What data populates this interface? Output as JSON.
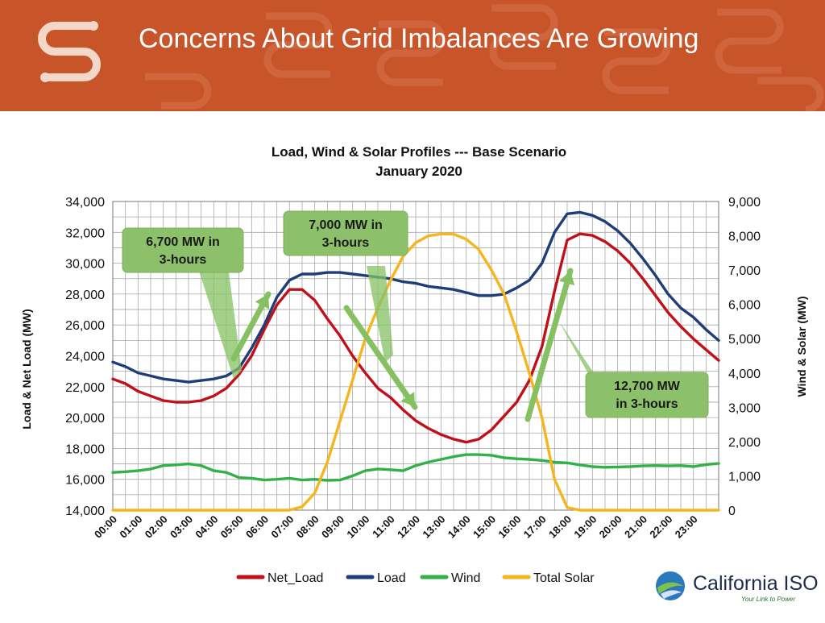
{
  "slide": {
    "title": "Concerns About Grid Imbalances Are Growing"
  },
  "brand": {
    "name": "California ISO",
    "tagline": "Your Link to Power",
    "logo_icon": "california-iso-logo-icon",
    "header_icon": "caiso-s-logo-icon"
  },
  "colors": {
    "header_bg": "#c8542a",
    "net_load": "#c0101a",
    "load": "#1f3e78",
    "wind": "#32b149",
    "solar": "#f5b51c",
    "annotation_bg": "#8dc06a",
    "arrow": "#86c161"
  },
  "chart_data": {
    "type": "line",
    "title": "Load, Wind & Solar Profiles --- Base Scenario",
    "subtitle": "January 2020",
    "ylabel": "Load & Net Load (MW)",
    "y2label": "Wind & Solar (MW)",
    "ylim": [
      14000,
      34000
    ],
    "yticks": [
      "34,000",
      "32,000",
      "30,000",
      "28,000",
      "26,000",
      "24,000",
      "22,000",
      "20,000",
      "18,000",
      "16,000",
      "14,000"
    ],
    "y2lim": [
      0,
      9000
    ],
    "y2ticks": [
      "9,000",
      "8,000",
      "7,000",
      "6,000",
      "5,000",
      "4,000",
      "3,000",
      "2,000",
      "1,000",
      "0"
    ],
    "grid": true,
    "legend_position": "bottom",
    "categories": [
      "00:00",
      "01:00",
      "02:00",
      "03:00",
      "04:00",
      "05:00",
      "06:00",
      "07:00",
      "08:00",
      "09:00",
      "10:00",
      "11:00",
      "12:00",
      "13:00",
      "14:00",
      "15:00",
      "16:00",
      "17:00",
      "18:00",
      "19:00",
      "20:00",
      "21:00",
      "22:00",
      "23:00"
    ],
    "series": [
      {
        "name": "Net_Load",
        "axis": "left",
        "color": "#c0101a",
        "x": [
          0,
          0.5,
          1,
          1.5,
          2,
          2.5,
          3,
          3.5,
          4,
          4.5,
          5,
          5.5,
          6,
          6.5,
          7,
          7.5,
          8,
          8.5,
          9,
          9.5,
          10,
          10.5,
          11,
          11.5,
          12,
          12.5,
          13,
          13.5,
          14,
          14.5,
          15,
          15.5,
          16,
          16.5,
          17,
          17.5,
          18,
          18.5,
          19,
          19.5,
          20,
          20.5,
          21,
          21.5,
          22,
          22.5,
          23,
          23.5,
          24
        ],
        "values": [
          22500,
          22200,
          21700,
          21400,
          21100,
          21000,
          21000,
          21100,
          21400,
          21900,
          22800,
          24000,
          25700,
          27300,
          28300,
          28300,
          27600,
          26400,
          25300,
          24000,
          22900,
          21900,
          21300,
          20500,
          19800,
          19300,
          18900,
          18600,
          18400,
          18600,
          19200,
          20100,
          21000,
          22400,
          24600,
          28200,
          31500,
          31900,
          31800,
          31400,
          30800,
          30000,
          29000,
          27900,
          26800,
          25900,
          25100,
          24400,
          23700
        ]
      },
      {
        "name": "Load",
        "axis": "left",
        "color": "#1f3e78",
        "x": [
          0,
          0.5,
          1,
          1.5,
          2,
          2.5,
          3,
          3.5,
          4,
          4.5,
          5,
          5.5,
          6,
          6.5,
          7,
          7.5,
          8,
          8.5,
          9,
          9.5,
          10,
          10.5,
          11,
          11.5,
          12,
          12.5,
          13,
          13.5,
          14,
          14.5,
          15,
          15.5,
          16,
          16.5,
          17,
          17.5,
          18,
          18.5,
          19,
          19.5,
          20,
          20.5,
          21,
          21.5,
          22,
          22.5,
          23,
          23.5,
          24
        ],
        "values": [
          23600,
          23300,
          22900,
          22700,
          22500,
          22400,
          22300,
          22400,
          22500,
          22700,
          23200,
          24500,
          26000,
          27800,
          28900,
          29300,
          29300,
          29400,
          29400,
          29300,
          29200,
          29100,
          29000,
          28800,
          28700,
          28500,
          28400,
          28300,
          28100,
          27900,
          27900,
          28000,
          28400,
          28900,
          30000,
          32000,
          33200,
          33300,
          33100,
          32700,
          32100,
          31300,
          30300,
          29200,
          28000,
          27100,
          26500,
          25700,
          25000
        ]
      },
      {
        "name": "Wind",
        "axis": "right",
        "color": "#32b149",
        "x": [
          0,
          0.5,
          1,
          1.5,
          2,
          2.5,
          3,
          3.5,
          4,
          4.5,
          5,
          5.5,
          6,
          6.5,
          7,
          7.5,
          8,
          8.5,
          9,
          9.5,
          10,
          10.5,
          11,
          11.5,
          12,
          12.5,
          13,
          13.5,
          14,
          14.5,
          15,
          15.5,
          16,
          16.5,
          17,
          17.5,
          18,
          18.5,
          19,
          19.5,
          20,
          20.5,
          21,
          21.5,
          22,
          22.5,
          23,
          23.5,
          24
        ],
        "values": [
          1100,
          1120,
          1150,
          1200,
          1300,
          1320,
          1350,
          1300,
          1150,
          1100,
          950,
          930,
          880,
          900,
          930,
          880,
          900,
          870,
          880,
          1000,
          1150,
          1200,
          1180,
          1150,
          1300,
          1400,
          1480,
          1560,
          1620,
          1620,
          1600,
          1530,
          1500,
          1480,
          1450,
          1400,
          1380,
          1320,
          1270,
          1250,
          1260,
          1270,
          1290,
          1300,
          1290,
          1300,
          1270,
          1330,
          1360
        ]
      },
      {
        "name": "Total Solar",
        "axis": "right",
        "color": "#f5b51c",
        "x": [
          0,
          1,
          2,
          3,
          4,
          5,
          6,
          7,
          7.5,
          8,
          8.5,
          9,
          9.5,
          10,
          10.5,
          11,
          11.5,
          12,
          12.5,
          13,
          13.5,
          14,
          14.5,
          15,
          15.5,
          16,
          16.5,
          17,
          17.5,
          18,
          18.5,
          19,
          20,
          21,
          22,
          23,
          24
        ],
        "values": [
          0,
          0,
          0,
          0,
          0,
          0,
          0,
          0,
          100,
          500,
          1400,
          2600,
          3800,
          5000,
          5900,
          6700,
          7400,
          7800,
          8000,
          8050,
          8050,
          7900,
          7600,
          7000,
          6300,
          5200,
          4000,
          2700,
          900,
          80,
          0,
          0,
          0,
          0,
          0,
          0,
          0
        ]
      }
    ],
    "annotations": [
      {
        "text_line1": "6,700 MW in",
        "text_line2": "3-hours"
      },
      {
        "text_line1": "7,000 MW in",
        "text_line2": "3-hours"
      },
      {
        "text_line1": "12,700 MW",
        "text_line2": "in 3-hours"
      }
    ]
  }
}
